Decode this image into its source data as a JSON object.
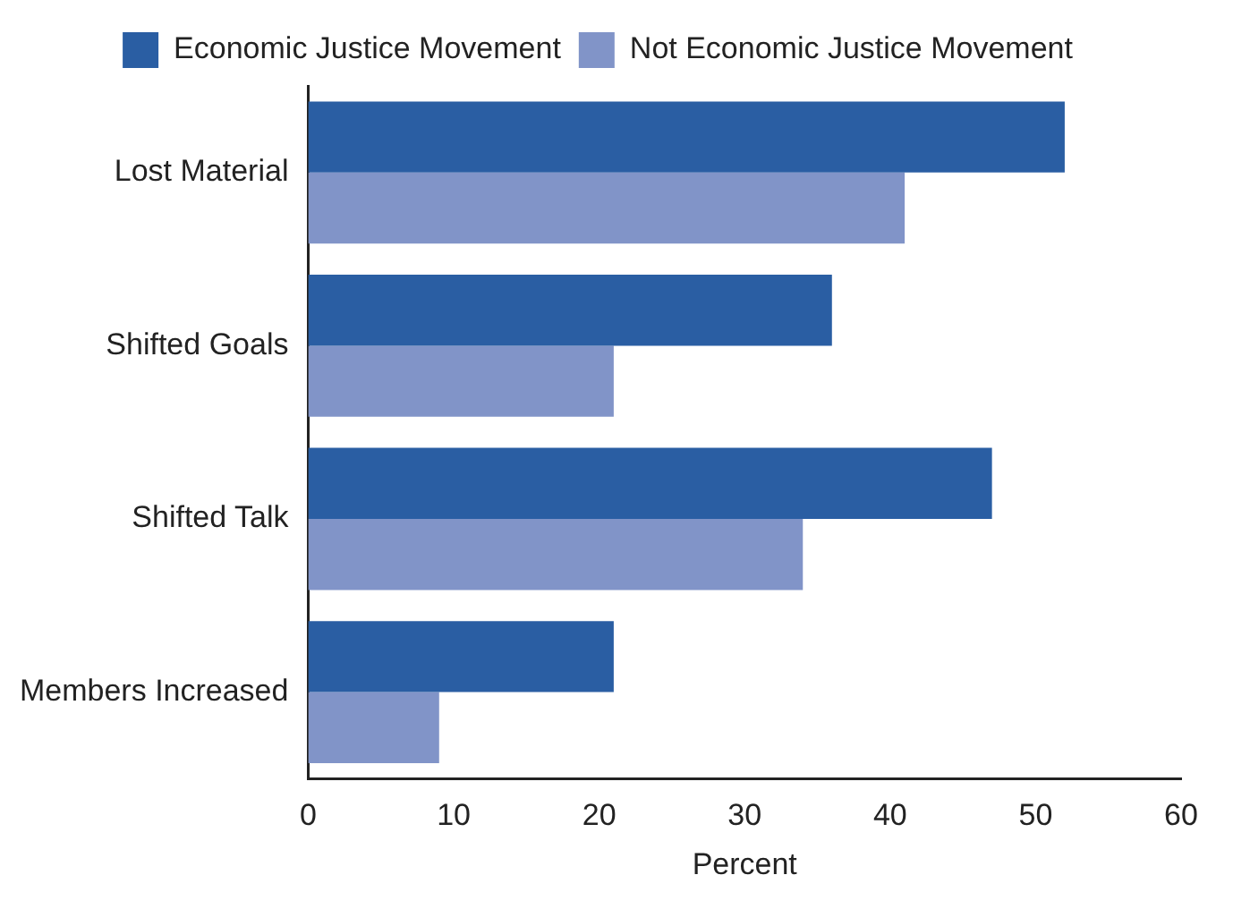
{
  "chart_data": {
    "type": "bar",
    "orientation": "horizontal",
    "xlabel": "Percent",
    "categories": [
      "Lost Material",
      "Shifted Goals",
      "Shifted Talk",
      "Members Increased"
    ],
    "series": [
      {
        "name": "Economic Justice Movement",
        "color": "#2a5ea3",
        "values": [
          52,
          36,
          47,
          21
        ]
      },
      {
        "name": "Not Economic Justice Movement",
        "color": "#8194c8",
        "values": [
          41,
          21,
          34,
          9
        ]
      }
    ],
    "xlim": [
      0,
      60
    ],
    "xticks": [
      0,
      10,
      20,
      30,
      40,
      50,
      60
    ],
    "grid": false,
    "legend": "top"
  }
}
